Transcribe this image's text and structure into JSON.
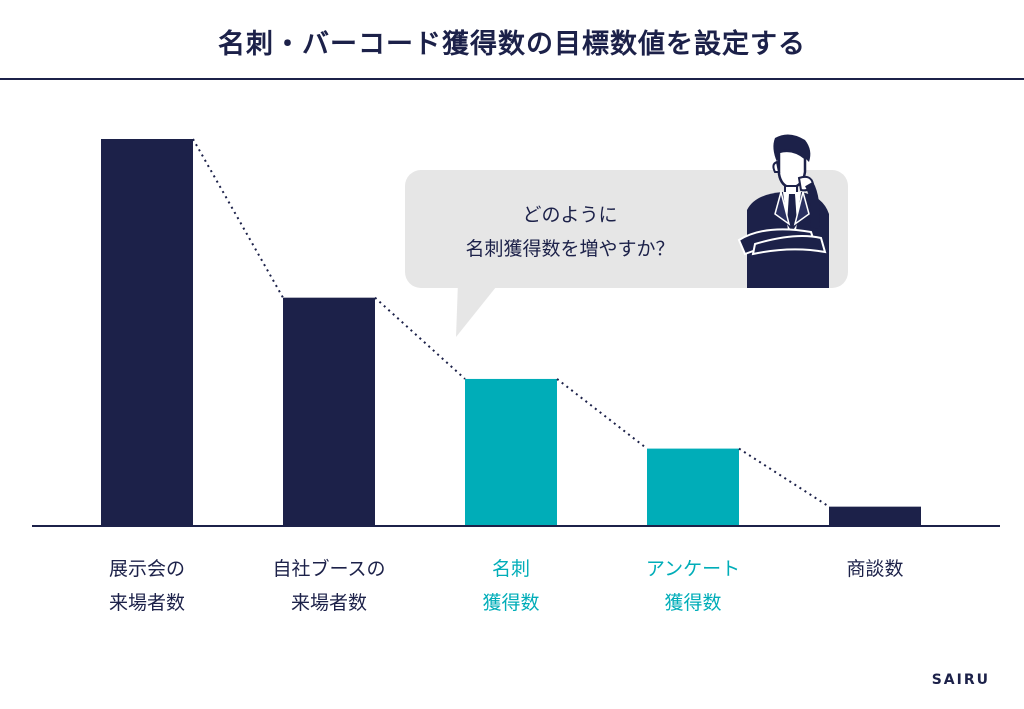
{
  "title": "名刺・バーコード獲得数の目標数値を設定する",
  "brand": "SAIRU",
  "callout": {
    "text": "どのように\n名刺獲得数を増やすか？"
  },
  "colors": {
    "navy": "#1c2149",
    "teal": "#00adb8",
    "bubble": "#e6e6e6"
  },
  "chart_data": {
    "type": "bar",
    "title": "名刺・バーコード獲得数の目標数値を設定する",
    "categories": [
      "展示会の\n来場者数",
      "自社ブースの\n来場者数",
      "名刺\n獲得数",
      "アンケート\n獲得数",
      "商談数"
    ],
    "values": [
      100,
      59,
      38,
      20,
      5
    ],
    "highlighted": [
      false,
      false,
      true,
      true,
      false
    ],
    "ylim": [
      0,
      100
    ],
    "xlabel": "",
    "ylabel": "",
    "grid": false,
    "trend_line": "dotted"
  }
}
